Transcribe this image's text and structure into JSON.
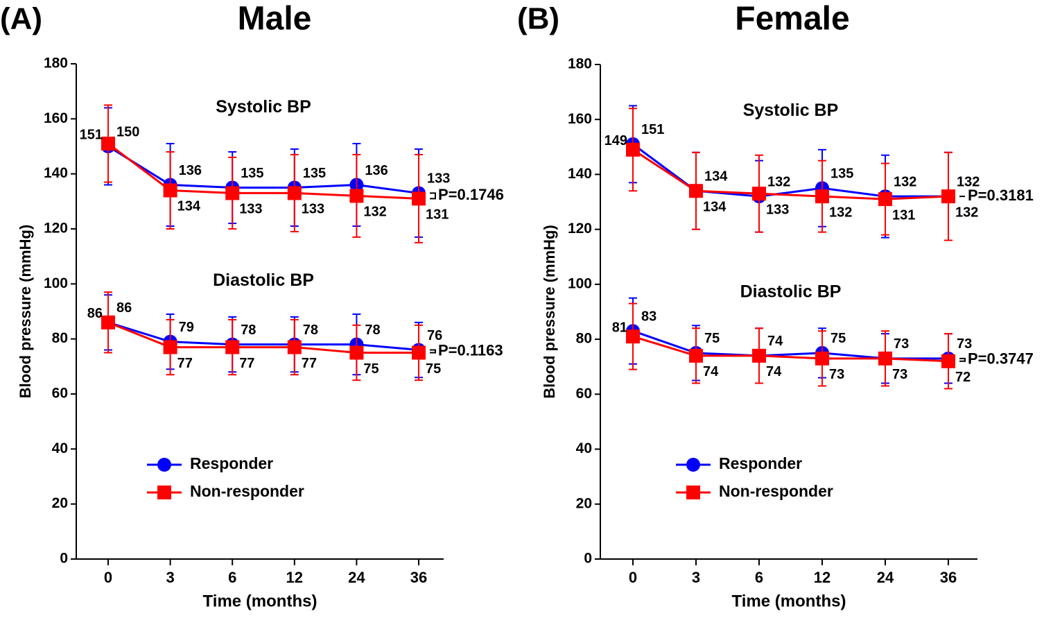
{
  "chart_data": [
    {
      "type": "line",
      "panel": "(A)",
      "title": "Male",
      "ylabel": "Blood pressure (mmHg)",
      "xlabel": "Time (months)",
      "categories": [
        "0",
        "3",
        "6",
        "12",
        "24",
        "36"
      ],
      "ylim": [
        0,
        180
      ],
      "yticks": [
        0,
        20,
        40,
        60,
        80,
        100,
        120,
        140,
        160,
        180
      ],
      "groups": [
        {
          "label": "Systolic BP",
          "p_value": "P=0.1746"
        },
        {
          "label": "Diastolic BP",
          "p_value": "P=0.1163"
        }
      ],
      "series": [
        {
          "name": "Responder",
          "color": "#0000ff",
          "marker": "circle",
          "systolic": [
            150,
            136,
            135,
            135,
            136,
            133
          ],
          "systolic_err": [
            14,
            15,
            13,
            14,
            15,
            16
          ],
          "diastolic": [
            86,
            79,
            78,
            78,
            78,
            76
          ],
          "diastolic_err": [
            10,
            10,
            10,
            10,
            11,
            10
          ]
        },
        {
          "name": "Non-responder",
          "color": "#ff0000",
          "marker": "square",
          "systolic": [
            151,
            134,
            133,
            133,
            132,
            131
          ],
          "systolic_err": [
            14,
            14,
            13,
            14,
            15,
            16
          ],
          "diastolic": [
            86,
            77,
            77,
            77,
            75,
            75
          ],
          "diastolic_err": [
            11,
            10,
            10,
            10,
            10,
            10
          ]
        }
      ]
    },
    {
      "type": "line",
      "panel": "(B)",
      "title": "Female",
      "ylabel": "Blood pressure (mmHg)",
      "xlabel": "Time (months)",
      "categories": [
        "0",
        "3",
        "6",
        "12",
        "24",
        "36"
      ],
      "ylim": [
        0,
        180
      ],
      "yticks": [
        0,
        20,
        40,
        60,
        80,
        100,
        120,
        140,
        160,
        180
      ],
      "groups": [
        {
          "label": "Systolic BP",
          "p_value": "P=0.3181"
        },
        {
          "label": "Diastolic BP",
          "p_value": "P=0.3747"
        }
      ],
      "series": [
        {
          "name": "Responder",
          "color": "#0000ff",
          "marker": "circle",
          "systolic": [
            151,
            134,
            132,
            135,
            132,
            132
          ],
          "systolic_err": [
            14,
            14,
            13,
            14,
            15,
            16
          ],
          "diastolic": [
            83,
            75,
            74,
            75,
            73,
            73
          ],
          "diastolic_err": [
            12,
            10,
            10,
            9,
            9,
            9
          ]
        },
        {
          "name": "Non-responder",
          "color": "#ff0000",
          "marker": "square",
          "systolic": [
            149,
            134,
            133,
            132,
            131,
            132
          ],
          "systolic_err": [
            15,
            14,
            14,
            13,
            13,
            16
          ],
          "diastolic": [
            81,
            74,
            74,
            73,
            73,
            72
          ],
          "diastolic_err": [
            12,
            10,
            10,
            10,
            10,
            10
          ]
        }
      ]
    }
  ]
}
